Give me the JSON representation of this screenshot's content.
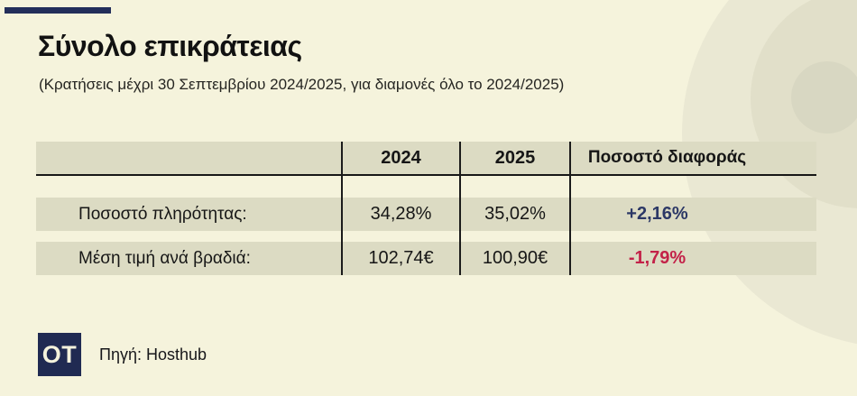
{
  "header": {
    "title": "Σύνολο επικράτειας",
    "subtitle": "(Κρατήσεις μέχρι 30 Σεπτεμβρίου 2024/2025, για διαμονές όλο το 2024/2025)"
  },
  "table": {
    "columns": [
      "",
      "2024",
      "2025",
      "Ποσοστό διαφοράς"
    ],
    "rows": [
      {
        "label": "Ποσοστό πληρότητας:",
        "y2024": "34,28%",
        "y2025": "35,02%",
        "diff": "+2,16%",
        "diff_color": "#2c3866"
      },
      {
        "label": "Μέση τιμή ανά βραδιά:",
        "y2024": "102,74€",
        "y2025": "100,90€",
        "diff": "-1,79%",
        "diff_color": "#c32148"
      }
    ]
  },
  "footer": {
    "logo_text": "OT",
    "source": "Πηγή: Hosthub"
  },
  "colors": {
    "background": "#f5f3dc",
    "panel_fill": "#dcdbc3",
    "accent_navy": "#232e5a",
    "positive_navy": "#2c3866",
    "negative_red": "#c32148",
    "text_dark": "#161616"
  },
  "chart_data": {
    "type": "table",
    "title": "Σύνολο επικράτειας",
    "subtitle": "(Κρατήσεις μέχρι 30 Σεπτεμβρίου 2024/2025, για διαμονές όλο το 2024/2025)",
    "columns": [
      "",
      "2024",
      "2025",
      "Ποσοστό διαφοράς"
    ],
    "rows": [
      [
        "Ποσοστό πληρότητας:",
        "34,28%",
        "35,02%",
        "+2,16%"
      ],
      [
        "Μέση τιμή ανά βραδιά:",
        "102,74€",
        "100,90€",
        "-1,79%"
      ]
    ],
    "numeric": {
      "occupancy_rate_pct": {
        "2024": 34.28,
        "2025": 35.02,
        "diff_pct": 2.16
      },
      "avg_price_per_night_eur": {
        "2024": 102.74,
        "2025": 100.9,
        "diff_pct": -1.79
      }
    },
    "source": "Πηγή: Hosthub"
  }
}
